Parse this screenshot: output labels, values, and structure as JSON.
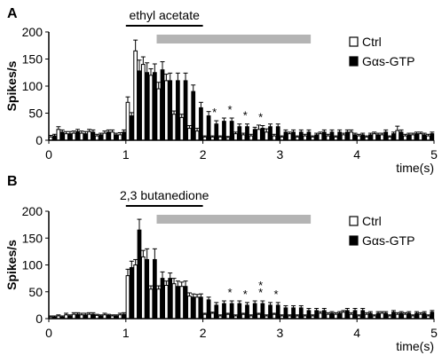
{
  "chart_data": [
    {
      "type": "bar",
      "panel_label": "A",
      "stimulus_label": "ethyl acetate",
      "ylabel": "Spikes/s",
      "xlabel": "time(s)",
      "ylim": [
        0,
        200
      ],
      "xlim": [
        0,
        5
      ],
      "yticks": [
        0,
        50,
        100,
        150,
        200
      ],
      "xticks": [
        0,
        1,
        2,
        3,
        4,
        5
      ],
      "stimulus_bar": [
        1.0,
        2.0
      ],
      "shaded_bar": [
        1.4,
        3.4
      ],
      "significance_marker": "*",
      "significant_bins": [
        2.1,
        2.3,
        2.5,
        2.7
      ],
      "legend": [
        {
          "label": "Ctrl",
          "fill": "#ffffff"
        },
        {
          "label": "Gαs-GTP",
          "fill": "#000000"
        }
      ],
      "x": [
        0.05,
        0.15,
        0.25,
        0.35,
        0.45,
        0.55,
        0.65,
        0.75,
        0.85,
        0.95,
        1.05,
        1.15,
        1.25,
        1.35,
        1.45,
        1.55,
        1.65,
        1.75,
        1.85,
        1.95,
        2.05,
        2.15,
        2.25,
        2.35,
        2.45,
        2.55,
        2.65,
        2.75,
        2.85,
        2.95,
        3.05,
        3.15,
        3.25,
        3.35,
        3.45,
        3.55,
        3.65,
        3.75,
        3.85,
        3.95,
        4.05,
        4.15,
        4.25,
        4.35,
        4.45,
        4.55,
        4.65,
        4.75,
        4.85,
        4.95
      ],
      "series": [
        {
          "name": "Ctrl",
          "values": [
            6,
            20,
            12,
            13,
            13,
            16,
            8,
            13,
            15,
            10,
            70,
            165,
            140,
            120,
            95,
            110,
            48,
            42,
            22,
            17,
            6,
            6,
            6,
            5,
            12,
            10,
            8,
            20,
            15,
            8,
            6,
            12,
            6,
            8,
            6,
            12,
            8,
            6,
            10,
            15,
            8,
            6,
            12,
            10,
            6,
            18,
            8,
            10,
            12,
            8
          ],
          "errors": [
            3,
            5,
            4,
            4,
            4,
            4,
            3,
            4,
            4,
            4,
            10,
            20,
            14,
            12,
            12,
            12,
            6,
            6,
            5,
            5,
            2,
            2,
            2,
            2,
            3,
            3,
            3,
            8,
            6,
            3,
            2,
            3,
            2,
            3,
            2,
            3,
            3,
            2,
            3,
            4,
            3,
            2,
            3,
            3,
            2,
            8,
            3,
            3,
            3,
            3
          ]
        },
        {
          "name": "Gαs-GTP",
          "values": [
            8,
            15,
            12,
            16,
            12,
            15,
            10,
            15,
            10,
            15,
            45,
            128,
            125,
            125,
            130,
            110,
            110,
            110,
            90,
            60,
            45,
            30,
            35,
            35,
            25,
            25,
            20,
            22,
            25,
            25,
            15,
            15,
            15,
            15,
            10,
            15,
            15,
            15,
            15,
            10,
            10,
            10,
            10,
            15,
            12,
            15,
            10,
            12,
            10,
            12
          ],
          "errors": [
            3,
            4,
            4,
            4,
            4,
            4,
            3,
            4,
            3,
            4,
            6,
            20,
            18,
            16,
            15,
            14,
            14,
            14,
            12,
            10,
            8,
            6,
            6,
            6,
            5,
            5,
            4,
            5,
            5,
            5,
            4,
            4,
            4,
            4,
            3,
            4,
            4,
            4,
            4,
            3,
            3,
            3,
            3,
            4,
            3,
            4,
            3,
            3,
            3,
            3
          ]
        }
      ]
    },
    {
      "type": "bar",
      "panel_label": "B",
      "stimulus_label": "2,3 butanedione",
      "ylabel": "Spikes/s",
      "xlabel": "time(s)",
      "ylim": [
        0,
        200
      ],
      "xlim": [
        0,
        5
      ],
      "yticks": [
        0,
        50,
        100,
        150,
        200
      ],
      "xticks": [
        0,
        1,
        2,
        3,
        4,
        5
      ],
      "stimulus_bar": [
        1.0,
        2.0
      ],
      "shaded_bar": [
        1.4,
        3.4
      ],
      "significance_marker": "*",
      "significant_bins": [
        2.3,
        2.5,
        2.7,
        2.9
      ],
      "double_significant_bins": [
        2.7
      ],
      "legend": [
        {
          "label": "Ctrl",
          "fill": "#ffffff"
        },
        {
          "label": "Gαs-GTP",
          "fill": "#000000"
        }
      ],
      "x": [
        0.05,
        0.15,
        0.25,
        0.35,
        0.45,
        0.55,
        0.65,
        0.75,
        0.85,
        0.95,
        1.05,
        1.15,
        1.25,
        1.35,
        1.45,
        1.55,
        1.65,
        1.75,
        1.85,
        1.95,
        2.05,
        2.15,
        2.25,
        2.35,
        2.45,
        2.55,
        2.65,
        2.75,
        2.85,
        2.95,
        3.05,
        3.15,
        3.25,
        3.35,
        3.45,
        3.55,
        3.65,
        3.75,
        3.85,
        3.95,
        4.05,
        4.15,
        4.25,
        4.35,
        4.45,
        4.55,
        4.65,
        4.75,
        4.85,
        4.95
      ],
      "series": [
        {
          "name": "Ctrl",
          "values": [
            3,
            5,
            7,
            8,
            7,
            8,
            6,
            7,
            5,
            7,
            80,
            100,
            115,
            55,
            55,
            62,
            65,
            60,
            42,
            40,
            8,
            10,
            5,
            8,
            5,
            8,
            5,
            8,
            5,
            8,
            5,
            5,
            5,
            5,
            5,
            10,
            8,
            8,
            12,
            8,
            5,
            8,
            5,
            10,
            5,
            8,
            8,
            5,
            8,
            5
          ],
          "errors": [
            2,
            2,
            3,
            3,
            3,
            3,
            2,
            3,
            2,
            3,
            12,
            10,
            12,
            6,
            6,
            8,
            10,
            8,
            6,
            5,
            2,
            2,
            2,
            2,
            2,
            2,
            2,
            2,
            2,
            2,
            2,
            2,
            2,
            2,
            2,
            3,
            3,
            3,
            3,
            3,
            2,
            3,
            2,
            3,
            2,
            3,
            3,
            2,
            3,
            2
          ]
        },
        {
          "name": "Gαs-GTP",
          "values": [
            3,
            3,
            5,
            8,
            7,
            8,
            5,
            6,
            5,
            8,
            95,
            165,
            110,
            110,
            75,
            75,
            60,
            60,
            40,
            40,
            35,
            25,
            28,
            28,
            28,
            25,
            28,
            28,
            25,
            25,
            20,
            20,
            20,
            15,
            15,
            15,
            10,
            10,
            15,
            15,
            15,
            10,
            10,
            10,
            12,
            10,
            10,
            10,
            10,
            12
          ],
          "errors": [
            2,
            2,
            2,
            3,
            3,
            3,
            2,
            2,
            2,
            3,
            12,
            20,
            20,
            20,
            12,
            10,
            10,
            10,
            6,
            6,
            5,
            5,
            5,
            5,
            5,
            5,
            5,
            5,
            5,
            5,
            4,
            4,
            4,
            4,
            4,
            4,
            3,
            3,
            4,
            4,
            4,
            3,
            3,
            3,
            3,
            3,
            3,
            3,
            3,
            3
          ]
        }
      ]
    }
  ]
}
